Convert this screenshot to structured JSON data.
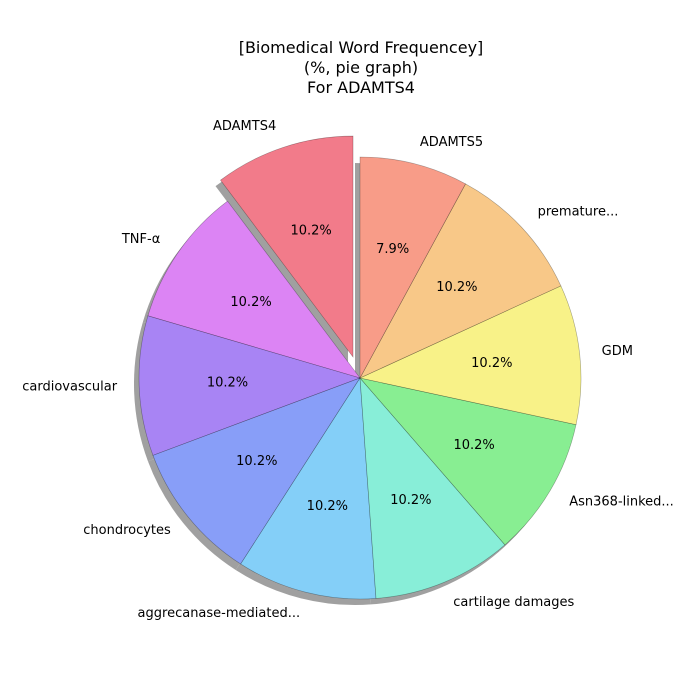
{
  "chart_data": {
    "type": "pie",
    "title": [
      "[Biomedical Word Frequencey]",
      "(%, pie graph)",
      "For ADAMTS4"
    ],
    "start_angle_deg": 90,
    "direction": "counterclockwise",
    "shadow": true,
    "slices": [
      {
        "label": "ADAMTS4",
        "value": 10.2,
        "pct_label": "10.2%",
        "color": "#f27b8a",
        "explode": 0.1
      },
      {
        "label": "TNF-α",
        "value": 10.2,
        "pct_label": "10.2%",
        "color": "#dc84f4",
        "explode": 0
      },
      {
        "label": "cardiovascular",
        "value": 10.2,
        "pct_label": "10.2%",
        "color": "#a884f4",
        "explode": 0
      },
      {
        "label": "chondrocytes",
        "value": 10.2,
        "pct_label": "10.2%",
        "color": "#889ef8",
        "explode": 0
      },
      {
        "label": "aggrecanase-mediated...",
        "value": 10.2,
        "pct_label": "10.2%",
        "color": "#84cff8",
        "explode": 0
      },
      {
        "label": "cartilage damages",
        "value": 10.2,
        "pct_label": "10.2%",
        "color": "#88eed8",
        "explode": 0
      },
      {
        "label": "Asn368-linked...",
        "value": 10.2,
        "pct_label": "10.2%",
        "color": "#88ee92",
        "explode": 0
      },
      {
        "label": "GDM",
        "value": 10.2,
        "pct_label": "10.2%",
        "color": "#f8f288",
        "explode": 0
      },
      {
        "label": "premature...",
        "value": 10.2,
        "pct_label": "10.2%",
        "color": "#f8c888",
        "explode": 0
      },
      {
        "label": "ADAMTS5",
        "value": 7.9,
        "pct_label": "7.9%",
        "color": "#f89c88",
        "explode": 0
      }
    ]
  }
}
